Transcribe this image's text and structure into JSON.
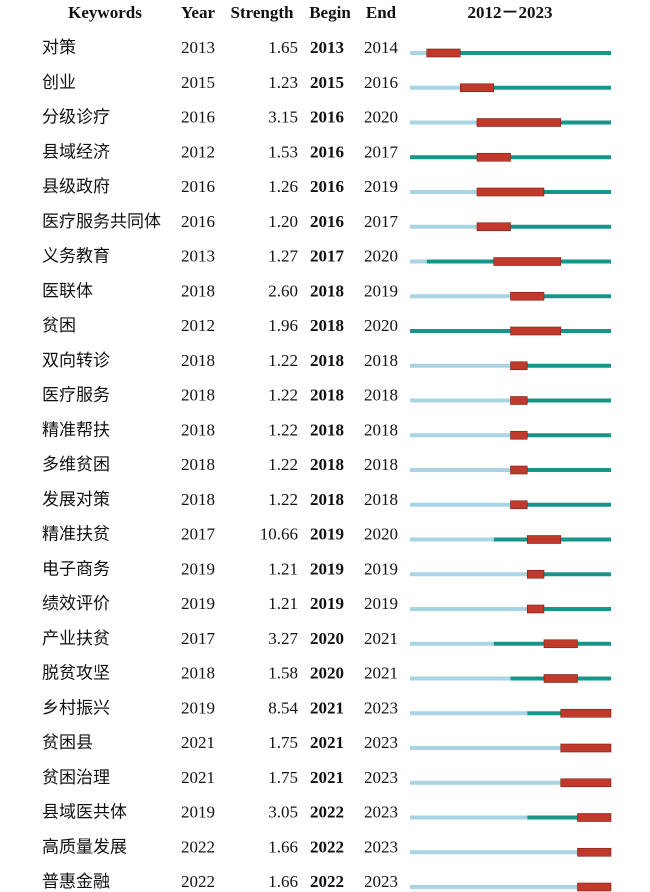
{
  "chart_data": {
    "type": "table",
    "headers": {
      "keywords": "Keywords",
      "year": "Year",
      "strength": "Strength",
      "begin": "Begin",
      "end": "End",
      "range": "2012－2023"
    },
    "range_start": 2012,
    "range_end": 2023,
    "colors": {
      "before_first_appearance": "#a9d4e4",
      "present": "#16968a",
      "burst": "#c0392b"
    },
    "rows": [
      {
        "keyword": "对策",
        "year": "2013",
        "strength": "1.65",
        "begin": "2013",
        "end": "2014"
      },
      {
        "keyword": "创业",
        "year": "2015",
        "strength": "1.23",
        "begin": "2015",
        "end": "2016"
      },
      {
        "keyword": "分级诊疗",
        "year": "2016",
        "strength": "3.15",
        "begin": "2016",
        "end": "2020"
      },
      {
        "keyword": "县域经济",
        "year": "2012",
        "strength": "1.53",
        "begin": "2016",
        "end": "2017"
      },
      {
        "keyword": "县级政府",
        "year": "2016",
        "strength": "1.26",
        "begin": "2016",
        "end": "2019"
      },
      {
        "keyword": "医疗服务共同体",
        "year": "2016",
        "strength": "1.20",
        "begin": "2016",
        "end": "2017"
      },
      {
        "keyword": "义务教育",
        "year": "2013",
        "strength": "1.27",
        "begin": "2017",
        "end": "2020"
      },
      {
        "keyword": "医联体",
        "year": "2018",
        "strength": "2.60",
        "begin": "2018",
        "end": "2019"
      },
      {
        "keyword": "贫困",
        "year": "2012",
        "strength": "1.96",
        "begin": "2018",
        "end": "2020"
      },
      {
        "keyword": "双向转诊",
        "year": "2018",
        "strength": "1.22",
        "begin": "2018",
        "end": "2018"
      },
      {
        "keyword": "医疗服务",
        "year": "2018",
        "strength": "1.22",
        "begin": "2018",
        "end": "2018"
      },
      {
        "keyword": "精准帮扶",
        "year": "2018",
        "strength": "1.22",
        "begin": "2018",
        "end": "2018"
      },
      {
        "keyword": "多维贫困",
        "year": "2018",
        "strength": "1.22",
        "begin": "2018",
        "end": "2018"
      },
      {
        "keyword": "发展对策",
        "year": "2018",
        "strength": "1.22",
        "begin": "2018",
        "end": "2018"
      },
      {
        "keyword": "精准扶贫",
        "year": "2017",
        "strength": "10.66",
        "begin": "2019",
        "end": "2020"
      },
      {
        "keyword": "电子商务",
        "year": "2019",
        "strength": "1.21",
        "begin": "2019",
        "end": "2019"
      },
      {
        "keyword": "绩效评价",
        "year": "2019",
        "strength": "1.21",
        "begin": "2019",
        "end": "2019"
      },
      {
        "keyword": "产业扶贫",
        "year": "2017",
        "strength": "3.27",
        "begin": "2020",
        "end": "2021"
      },
      {
        "keyword": "脱贫攻坚",
        "year": "2018",
        "strength": "1.58",
        "begin": "2020",
        "end": "2021"
      },
      {
        "keyword": "乡村振兴",
        "year": "2019",
        "strength": "8.54",
        "begin": "2021",
        "end": "2023"
      },
      {
        "keyword": "贫困县",
        "year": "2021",
        "strength": "1.75",
        "begin": "2021",
        "end": "2023"
      },
      {
        "keyword": "贫困治理",
        "year": "2021",
        "strength": "1.75",
        "begin": "2021",
        "end": "2023"
      },
      {
        "keyword": "县域医共体",
        "year": "2019",
        "strength": "3.05",
        "begin": "2022",
        "end": "2023"
      },
      {
        "keyword": "高质量发展",
        "year": "2022",
        "strength": "1.66",
        "begin": "2022",
        "end": "2023"
      },
      {
        "keyword": "普惠金融",
        "year": "2022",
        "strength": "1.66",
        "begin": "2022",
        "end": "2023"
      }
    ]
  }
}
